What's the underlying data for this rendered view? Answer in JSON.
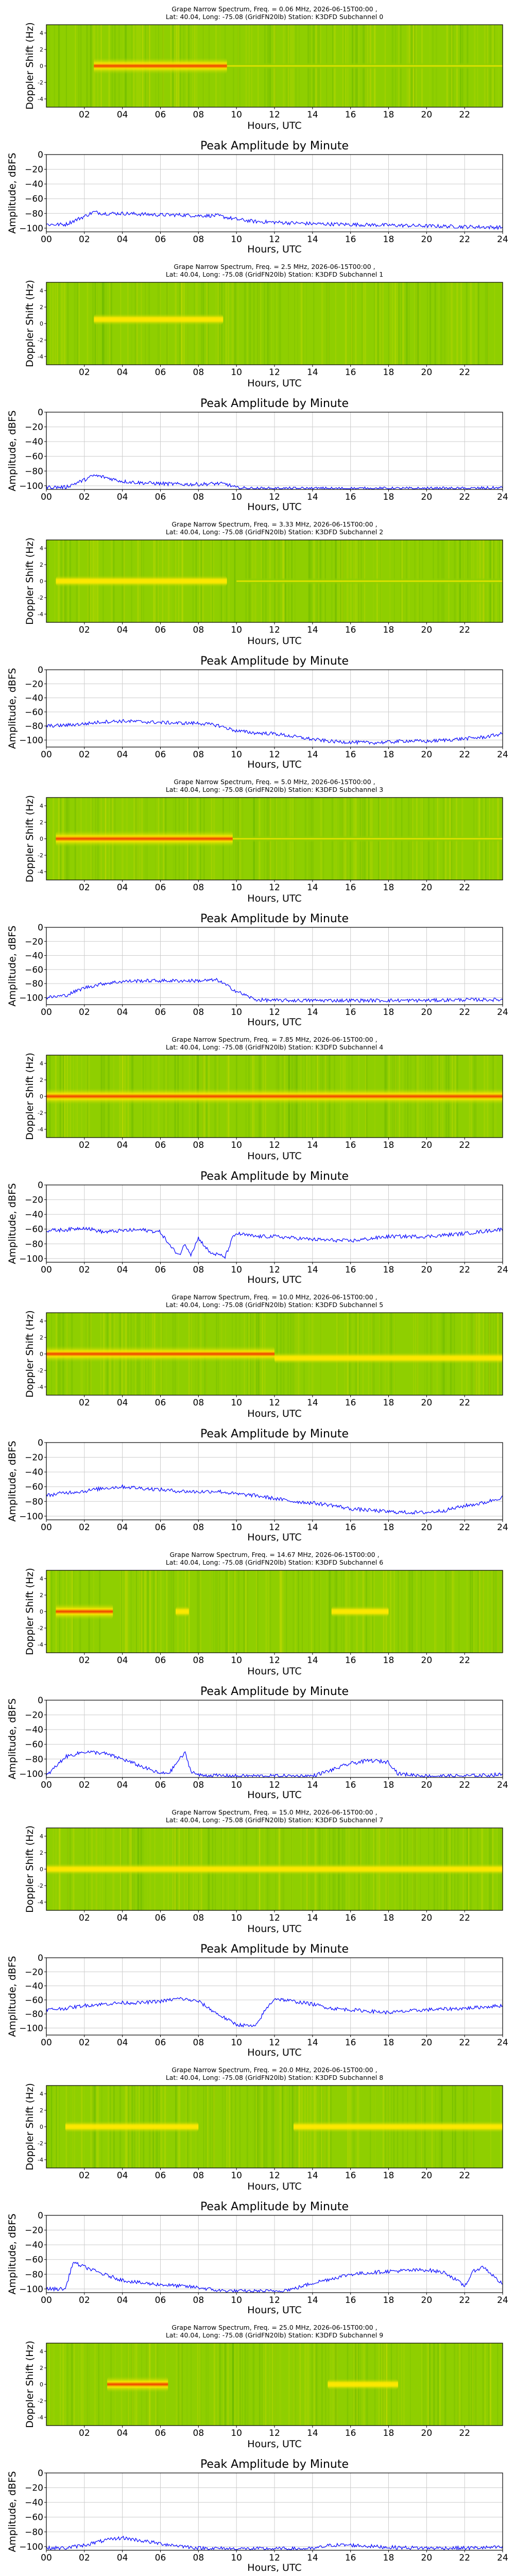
{
  "figure": {
    "spectrogram_titles": [
      [
        "Grape Narrow Spectrum, Freq. = 0.06 MHz, 2026-06-15T00:00 ,",
        "Lat: 40.04, Long: -75.08 (GridFN20lb) Station: K3DFD Subchannel 0"
      ],
      [
        "Grape Narrow Spectrum, Freq. = 2.5 MHz, 2026-06-15T00:00 ,",
        "Lat: 40.04, Long: -75.08 (GridFN20lb) Station: K3DFD Subchannel 1"
      ],
      [
        "Grape Narrow Spectrum, Freq. = 3.33 MHz, 2026-06-15T00:00 ,",
        "Lat: 40.04, Long: -75.08 (GridFN20lb) Station: K3DFD Subchannel 2"
      ],
      [
        "Grape Narrow Spectrum, Freq. = 5.0 MHz, 2026-06-15T00:00 ,",
        "Lat: 40.04, Long: -75.08 (GridFN20lb) Station: K3DFD Subchannel 3"
      ],
      [
        "Grape Narrow Spectrum, Freq. = 7.85 MHz, 2026-06-15T00:00 ,",
        "Lat: 40.04, Long: -75.08 (GridFN20lb) Station: K3DFD Subchannel 4"
      ],
      [
        "Grape Narrow Spectrum, Freq. = 10.0 MHz, 2026-06-15T00:00 ,",
        "Lat: 40.04, Long: -75.08 (GridFN20lb) Station: K3DFD Subchannel 5"
      ],
      [
        "Grape Narrow Spectrum, Freq. = 14.67 MHz, 2026-06-15T00:00 ,",
        "Lat: 40.04, Long: -75.08 (GridFN20lb) Station: K3DFD Subchannel 6"
      ],
      [
        "Grape Narrow Spectrum, Freq. = 15.0 MHz, 2026-06-15T00:00 ,",
        "Lat: 40.04, Long: -75.08 (GridFN20lb) Station: K3DFD Subchannel 7"
      ],
      [
        "Grape Narrow Spectrum, Freq. = 20.0 MHz, 2026-06-15T00:00 ,",
        "Lat: 40.04, Long: -75.08 (GridFN20lb) Station: K3DFD Subchannel 8"
      ],
      [
        "Grape Narrow Spectrum, Freq. = 25.0 MHz, 2026-06-15T00:00 ,",
        "Lat: 40.04, Long: -75.08 (GridFN20lb) Station: K3DFD Subchannel 9"
      ]
    ],
    "spectrogram_ylabel": "Doppler Shift (Hz)",
    "spectrogram_yticks": [
      "4",
      "2",
      "0",
      "-2",
      "-4"
    ],
    "spectrogram_xticks": [
      "02",
      "04",
      "06",
      "08",
      "10",
      "12",
      "14",
      "16",
      "18",
      "20",
      "22"
    ],
    "xlabel": "Hours, UTC",
    "amplitude_title": "Peak Amplitude by Minute",
    "amplitude_ylabel": "Amplitude, dBFS",
    "amplitude_yticks": [
      "0",
      "−20",
      "−40",
      "−60",
      "−80",
      "−100"
    ],
    "amplitude_xticks": [
      "00",
      "02",
      "04",
      "06",
      "08",
      "10",
      "12",
      "14",
      "16",
      "18",
      "20",
      "22",
      "24"
    ],
    "colors": {
      "line": "#0000ff",
      "grid": "#cccccc",
      "spectrogram_background": "#8fcf00",
      "spectrogram_signal": "#ffe800",
      "spectrogram_peak": "#f03c00"
    }
  },
  "chart_data": [
    {
      "type": "heatmap",
      "subchannel": 0,
      "frequency_mhz": 0.06,
      "x_unit": "Hours, UTC",
      "y_unit": "Doppler Shift (Hz)",
      "xlim": [
        0,
        24
      ],
      "ylim": [
        -5,
        5
      ],
      "signal_bands": [
        {
          "start": 2.5,
          "end": 9.5,
          "doppler_hz": 0,
          "intensity": "strong"
        },
        {
          "start": 9.5,
          "end": 24,
          "doppler_hz": 0,
          "intensity": "weak"
        }
      ]
    },
    {
      "type": "line",
      "subchannel": 0,
      "title": "Peak Amplitude by Minute",
      "xlim": [
        0,
        24
      ],
      "ylim": [
        -105,
        0
      ],
      "x": [
        0,
        1,
        2,
        2.5,
        3,
        4,
        5,
        6,
        7,
        8,
        9,
        10,
        11,
        12,
        13,
        14,
        16,
        18,
        20,
        22,
        24
      ],
      "y": [
        -95,
        -95,
        -84,
        -78,
        -80,
        -80,
        -81,
        -82,
        -82,
        -83,
        -83,
        -88,
        -91,
        -92,
        -93,
        -94,
        -95,
        -96,
        -97,
        -98,
        -99
      ]
    },
    {
      "type": "heatmap",
      "subchannel": 1,
      "frequency_mhz": 2.5,
      "x_unit": "Hours, UTC",
      "y_unit": "Doppler Shift (Hz)",
      "xlim": [
        0,
        24
      ],
      "ylim": [
        -5,
        5
      ],
      "signal_bands": [
        {
          "start": 2.5,
          "end": 9.3,
          "doppler_hz": 0.5,
          "intensity": "medium"
        }
      ]
    },
    {
      "type": "line",
      "subchannel": 1,
      "title": "Peak Amplitude by Minute",
      "xlim": [
        0,
        24
      ],
      "ylim": [
        -105,
        0
      ],
      "x": [
        0,
        1,
        2,
        2.5,
        3,
        4,
        5,
        6,
        7,
        8,
        9,
        9.5,
        10,
        11,
        12,
        13,
        14,
        16,
        18,
        20,
        22,
        24
      ],
      "y": [
        -102,
        -102,
        -92,
        -86,
        -88,
        -94,
        -96,
        -97,
        -98,
        -98,
        -97,
        -98,
        -103,
        -104,
        -104,
        -104,
        -104,
        -104,
        -104,
        -104,
        -104,
        -103
      ]
    },
    {
      "type": "heatmap",
      "subchannel": 2,
      "frequency_mhz": 3.33,
      "x_unit": "Hours, UTC",
      "y_unit": "Doppler Shift (Hz)",
      "xlim": [
        0,
        24
      ],
      "ylim": [
        -5,
        5
      ],
      "signal_bands": [
        {
          "start": 0.5,
          "end": 9.5,
          "doppler_hz": 0,
          "intensity": "medium"
        },
        {
          "start": 10,
          "end": 24,
          "doppler_hz": 0,
          "intensity": "weak"
        }
      ]
    },
    {
      "type": "line",
      "subchannel": 2,
      "title": "Peak Amplitude by Minute",
      "xlim": [
        0,
        24
      ],
      "ylim": [
        -110,
        0
      ],
      "x": [
        0,
        1,
        2,
        3,
        4,
        5,
        6,
        7,
        8,
        9,
        10,
        11,
        12,
        13,
        14,
        15,
        16,
        17,
        18,
        19,
        20,
        21,
        22,
        23,
        24
      ],
      "y": [
        -80,
        -79,
        -77,
        -74,
        -73,
        -74,
        -75,
        -76,
        -76,
        -79,
        -87,
        -90,
        -91,
        -95,
        -99,
        -102,
        -103,
        -104,
        -103,
        -101,
        -102,
        -100,
        -98,
        -96,
        -91
      ]
    },
    {
      "type": "heatmap",
      "subchannel": 3,
      "frequency_mhz": 5.0,
      "x_unit": "Hours, UTC",
      "y_unit": "Doppler Shift (Hz)",
      "xlim": [
        0,
        24
      ],
      "ylim": [
        -5,
        5
      ],
      "signal_bands": [
        {
          "start": 0.5,
          "end": 9.8,
          "doppler_hz": 0,
          "intensity": "strong"
        },
        {
          "start": 9.8,
          "end": 24,
          "doppler_hz": 0,
          "intensity": "weak"
        }
      ]
    },
    {
      "type": "line",
      "subchannel": 3,
      "title": "Peak Amplitude by Minute",
      "xlim": [
        0,
        24
      ],
      "ylim": [
        -110,
        0
      ],
      "x": [
        0,
        1,
        2,
        3,
        4,
        5,
        6,
        7,
        8,
        9,
        10,
        11,
        12,
        14,
        16,
        18,
        20,
        22,
        24
      ],
      "y": [
        -100,
        -97,
        -86,
        -80,
        -77,
        -76,
        -76,
        -76,
        -76,
        -75,
        -91,
        -103,
        -104,
        -104,
        -104,
        -104,
        -104,
        -103,
        -103
      ]
    },
    {
      "type": "heatmap",
      "subchannel": 4,
      "frequency_mhz": 7.85,
      "x_unit": "Hours, UTC",
      "y_unit": "Doppler Shift (Hz)",
      "xlim": [
        0,
        24
      ],
      "ylim": [
        -5,
        5
      ],
      "signal_bands": [
        {
          "start": 0,
          "end": 24,
          "doppler_hz": 0,
          "intensity": "strong"
        }
      ]
    },
    {
      "type": "line",
      "subchannel": 4,
      "title": "Peak Amplitude by Minute",
      "xlim": [
        0,
        24
      ],
      "ylim": [
        -105,
        0
      ],
      "x": [
        0,
        1,
        2,
        3,
        4,
        5,
        6,
        6.6,
        7,
        7.3,
        7.6,
        8,
        8.6,
        9.2,
        9.4,
        9.8,
        10,
        11,
        12,
        13,
        14,
        16,
        18,
        20,
        22,
        24
      ],
      "y": [
        -62,
        -61,
        -58,
        -64,
        -62,
        -61,
        -64,
        -86,
        -95,
        -80,
        -94,
        -72,
        -92,
        -96,
        -98,
        -72,
        -66,
        -70,
        -70,
        -72,
        -74,
        -76,
        -70,
        -70,
        -66,
        -60
      ]
    },
    {
      "type": "heatmap",
      "subchannel": 5,
      "frequency_mhz": 10.0,
      "x_unit": "Hours, UTC",
      "y_unit": "Doppler Shift (Hz)",
      "xlim": [
        0,
        24
      ],
      "ylim": [
        -5,
        5
      ],
      "signal_bands": [
        {
          "start": 0,
          "end": 12,
          "doppler_hz": 0,
          "intensity": "strong"
        },
        {
          "start": 12,
          "end": 24,
          "doppler_hz": -0.5,
          "intensity": "medium"
        }
      ]
    },
    {
      "type": "line",
      "subchannel": 5,
      "title": "Peak Amplitude by Minute",
      "xlim": [
        0,
        24
      ],
      "ylim": [
        -105,
        0
      ],
      "x": [
        0,
        1,
        2,
        3,
        4,
        5,
        6,
        7,
        8,
        9,
        10,
        11,
        12,
        13,
        14,
        15,
        16,
        17,
        18,
        19,
        20,
        21,
        22,
        23,
        24
      ],
      "y": [
        -72,
        -68,
        -66,
        -62,
        -60,
        -62,
        -64,
        -66,
        -67,
        -66,
        -70,
        -72,
        -76,
        -80,
        -82,
        -85,
        -90,
        -92,
        -94,
        -95,
        -95,
        -92,
        -86,
        -82,
        -74
      ]
    },
    {
      "type": "heatmap",
      "subchannel": 6,
      "frequency_mhz": 14.67,
      "x_unit": "Hours, UTC",
      "y_unit": "Doppler Shift (Hz)",
      "xlim": [
        0,
        24
      ],
      "ylim": [
        -5,
        5
      ],
      "signal_bands": [
        {
          "start": 0.5,
          "end": 3.5,
          "doppler_hz": 0,
          "intensity": "strong"
        },
        {
          "start": 6.8,
          "end": 7.5,
          "doppler_hz": 0,
          "intensity": "medium"
        },
        {
          "start": 15,
          "end": 18,
          "doppler_hz": 0,
          "intensity": "medium"
        }
      ]
    },
    {
      "type": "line",
      "subchannel": 6,
      "title": "Peak Amplitude by Minute",
      "xlim": [
        0,
        24
      ],
      "ylim": [
        -105,
        0
      ],
      "x": [
        0,
        0.5,
        1,
        2,
        3,
        4,
        5,
        6,
        6.5,
        7,
        7.3,
        7.6,
        8,
        10,
        12,
        14,
        15,
        16,
        17,
        18,
        18.5,
        20,
        22,
        24
      ],
      "y": [
        -103,
        -90,
        -77,
        -70,
        -72,
        -80,
        -90,
        -100,
        -98,
        -80,
        -72,
        -96,
        -102,
        -103,
        -103,
        -103,
        -95,
        -86,
        -82,
        -84,
        -100,
        -103,
        -103,
        -101
      ]
    },
    {
      "type": "heatmap",
      "subchannel": 7,
      "frequency_mhz": 15.0,
      "x_unit": "Hours, UTC",
      "y_unit": "Doppler Shift (Hz)",
      "xlim": [
        0,
        24
      ],
      "ylim": [
        -5,
        5
      ],
      "signal_bands": [
        {
          "start": 0,
          "end": 24,
          "doppler_hz": 0,
          "intensity": "medium"
        }
      ]
    },
    {
      "type": "line",
      "subchannel": 7,
      "title": "Peak Amplitude by Minute",
      "xlim": [
        0,
        24
      ],
      "ylim": [
        -110,
        0
      ],
      "x": [
        0,
        1,
        2,
        3,
        4,
        5,
        6,
        7,
        8,
        9,
        10,
        11,
        11.5,
        12,
        13,
        14,
        15,
        16,
        17,
        18,
        19,
        20,
        22,
        24
      ],
      "y": [
        -74,
        -72,
        -68,
        -66,
        -64,
        -64,
        -62,
        -58,
        -62,
        -80,
        -95,
        -98,
        -75,
        -58,
        -62,
        -66,
        -72,
        -74,
        -76,
        -78,
        -76,
        -74,
        -72,
        -68
      ]
    },
    {
      "type": "heatmap",
      "subchannel": 8,
      "frequency_mhz": 20.0,
      "x_unit": "Hours, UTC",
      "y_unit": "Doppler Shift (Hz)",
      "xlim": [
        0,
        24
      ],
      "ylim": [
        -5,
        5
      ],
      "signal_bands": [
        {
          "start": 1,
          "end": 8,
          "doppler_hz": 0,
          "intensity": "medium"
        },
        {
          "start": 13,
          "end": 24,
          "doppler_hz": 0,
          "intensity": "medium"
        }
      ]
    },
    {
      "type": "line",
      "subchannel": 8,
      "title": "Peak Amplitude by Minute",
      "xlim": [
        0,
        24
      ],
      "ylim": [
        -105,
        0
      ],
      "x": [
        0,
        1,
        1.4,
        2,
        3,
        4,
        5,
        6,
        7,
        8,
        9,
        10,
        11,
        12,
        13,
        14,
        15,
        16,
        17,
        18,
        19,
        20,
        21,
        22,
        22.5,
        23,
        24
      ],
      "y": [
        -100,
        -100,
        -64,
        -70,
        -80,
        -88,
        -92,
        -94,
        -96,
        -98,
        -102,
        -103,
        -103,
        -103,
        -100,
        -92,
        -86,
        -80,
        -78,
        -76,
        -75,
        -74,
        -78,
        -96,
        -75,
        -70,
        -94
      ]
    },
    {
      "type": "heatmap",
      "subchannel": 9,
      "frequency_mhz": 25.0,
      "x_unit": "Hours, UTC",
      "y_unit": "Doppler Shift (Hz)",
      "xlim": [
        0,
        24
      ],
      "ylim": [
        -5,
        5
      ],
      "signal_bands": [
        {
          "start": 3.2,
          "end": 6.4,
          "doppler_hz": 0,
          "intensity": "strong"
        },
        {
          "start": 14.8,
          "end": 18.5,
          "doppler_hz": 0,
          "intensity": "medium"
        }
      ]
    },
    {
      "type": "line",
      "subchannel": 9,
      "title": "Peak Amplitude by Minute",
      "xlim": [
        0,
        24
      ],
      "ylim": [
        -105,
        0
      ],
      "x": [
        0,
        1,
        2,
        3,
        4,
        5,
        6,
        7,
        8,
        10,
        12,
        14,
        15,
        16,
        18,
        20,
        22,
        24
      ],
      "y": [
        -102,
        -102,
        -98,
        -92,
        -88,
        -92,
        -96,
        -99,
        -102,
        -103,
        -103,
        -103,
        -98,
        -98,
        -101,
        -102,
        -102,
        -101
      ]
    }
  ]
}
